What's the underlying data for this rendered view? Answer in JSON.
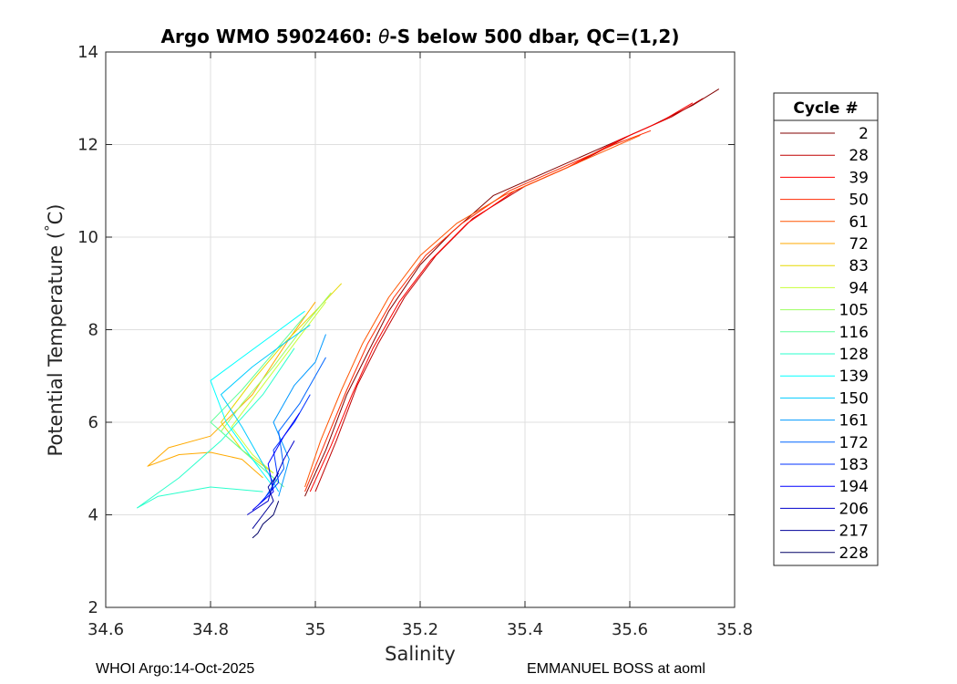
{
  "chart_data": {
    "type": "line",
    "title_parts": [
      "Argo WMO 5902460: ",
      "θ",
      "-S below 500 dbar,  QC=(1,2)"
    ],
    "xlabel": "Salinity",
    "ylabel_parts": [
      "Potential Temperature (",
      "°",
      "C)"
    ],
    "xlim": [
      34.6,
      35.8
    ],
    "ylim": [
      2,
      14
    ],
    "xticks": [
      "34.6",
      "34.8",
      "35",
      "35.2",
      "35.4",
      "35.6",
      "35.8"
    ],
    "yticks": [
      "2",
      "4",
      "6",
      "8",
      "10",
      "12",
      "14"
    ],
    "grid": true,
    "legend_title": "Cycle #",
    "legend_position": "outside-right",
    "legend_entries": [
      "2",
      "28",
      "39",
      "50",
      "61",
      "72",
      "83",
      "94",
      "105",
      "116",
      "128",
      "139",
      "150",
      "161",
      "172",
      "183",
      "194",
      "206",
      "217",
      "228"
    ],
    "series": [
      {
        "name": "2",
        "color": "#800000",
        "x": [
          34.98,
          35.02,
          35.06,
          35.1,
          35.14,
          35.2,
          35.26,
          35.34,
          35.44,
          35.54,
          35.64,
          35.72,
          35.77
        ],
        "y": [
          4.4,
          5.4,
          6.6,
          7.5,
          8.4,
          9.4,
          10.1,
          10.9,
          11.4,
          11.9,
          12.4,
          12.85,
          13.2
        ]
      },
      {
        "name": "28",
        "color": "#bf0000",
        "x": [
          35.0,
          35.04,
          35.08,
          35.12,
          35.17,
          35.23,
          35.3,
          35.4,
          35.5,
          35.6,
          35.68,
          35.74
        ],
        "y": [
          4.5,
          5.6,
          6.8,
          7.7,
          8.7,
          9.6,
          10.4,
          11.1,
          11.6,
          12.2,
          12.6,
          13.0
        ]
      },
      {
        "name": "39",
        "color": "#ff0000",
        "x": [
          34.99,
          35.03,
          35.07,
          35.11,
          35.16,
          35.22,
          35.29,
          35.38,
          35.48,
          35.58,
          35.66,
          35.72
        ],
        "y": [
          4.5,
          5.5,
          6.6,
          7.6,
          8.6,
          9.5,
          10.3,
          11.0,
          11.5,
          12.1,
          12.5,
          12.9
        ]
      },
      {
        "name": "50",
        "color": "#ff2a00",
        "x": [
          34.98,
          35.02,
          35.06,
          35.1,
          35.15,
          35.21,
          35.28,
          35.37,
          35.47,
          35.57,
          35.64
        ],
        "y": [
          4.5,
          5.6,
          6.7,
          7.7,
          8.7,
          9.6,
          10.3,
          11.0,
          11.5,
          12.0,
          12.3
        ]
      },
      {
        "name": "61",
        "color": "#ff5500",
        "x": [
          34.98,
          35.01,
          35.05,
          35.09,
          35.14,
          35.2,
          35.27,
          35.36,
          35.46,
          35.56,
          35.62
        ],
        "y": [
          4.6,
          5.6,
          6.7,
          7.7,
          8.7,
          9.6,
          10.3,
          10.9,
          11.4,
          11.9,
          12.2
        ]
      },
      {
        "name": "72",
        "color": "#ffaa00",
        "x": [
          34.9,
          34.86,
          34.8,
          34.74,
          34.68,
          34.72,
          34.8,
          34.88,
          34.95,
          35.0
        ],
        "y": [
          4.8,
          5.2,
          5.35,
          5.3,
          5.05,
          5.45,
          5.7,
          6.6,
          7.8,
          8.6
        ]
      },
      {
        "name": "83",
        "color": "#e6d800",
        "x": [
          34.92,
          34.86,
          34.82,
          34.88,
          34.94,
          35.0,
          35.05
        ],
        "y": [
          4.9,
          5.4,
          6.0,
          6.9,
          7.7,
          8.4,
          9.0
        ]
      },
      {
        "name": "94",
        "color": "#c8ff38",
        "x": [
          34.92,
          34.88,
          34.84,
          34.9,
          34.96,
          35.02
        ],
        "y": [
          4.9,
          5.3,
          5.9,
          6.8,
          7.7,
          8.6
        ]
      },
      {
        "name": "105",
        "color": "#9bff60",
        "x": [
          34.93,
          34.88,
          34.82,
          34.86,
          34.92,
          34.98,
          35.03
        ],
        "y": [
          4.7,
          5.2,
          5.8,
          6.4,
          7.2,
          8.1,
          8.8
        ]
      },
      {
        "name": "116",
        "color": "#60ff9b",
        "x": [
          34.94,
          34.9,
          34.84,
          34.8,
          34.86,
          34.92,
          34.98
        ],
        "y": [
          4.6,
          5.0,
          5.6,
          6.0,
          6.7,
          7.5,
          8.3
        ]
      },
      {
        "name": "128",
        "color": "#2affcc",
        "x": [
          34.9,
          34.8,
          34.7,
          34.66,
          34.74,
          34.82,
          34.9,
          34.96
        ],
        "y": [
          4.5,
          4.6,
          4.4,
          4.15,
          4.8,
          5.6,
          6.6,
          7.6
        ]
      },
      {
        "name": "139",
        "color": "#00ffff",
        "x": [
          34.92,
          34.88,
          34.83,
          34.8,
          34.86,
          34.92,
          34.98
        ],
        "y": [
          4.6,
          5.2,
          6.0,
          6.9,
          7.4,
          7.9,
          8.4
        ]
      },
      {
        "name": "150",
        "color": "#00ccff",
        "x": [
          34.93,
          34.9,
          34.86,
          34.82,
          34.88,
          34.94,
          34.99
        ],
        "y": [
          4.5,
          5.1,
          5.9,
          6.6,
          7.2,
          7.7,
          8.1
        ]
      },
      {
        "name": "161",
        "color": "#0099ff",
        "x": [
          34.93,
          34.95,
          34.92,
          34.96,
          35.0,
          35.02
        ],
        "y": [
          4.4,
          5.2,
          6.0,
          6.8,
          7.3,
          7.9
        ]
      },
      {
        "name": "172",
        "color": "#0066ff",
        "x": [
          34.9,
          34.94,
          34.93,
          34.97,
          35.0,
          35.02
        ],
        "y": [
          4.3,
          5.0,
          5.8,
          6.4,
          7.0,
          7.4
        ]
      },
      {
        "name": "183",
        "color": "#0033ff",
        "x": [
          34.89,
          34.93,
          34.92,
          34.96,
          34.99
        ],
        "y": [
          4.2,
          4.7,
          5.4,
          6.0,
          6.6
        ]
      },
      {
        "name": "194",
        "color": "#0000ff",
        "x": [
          34.88,
          34.92,
          34.91,
          34.94,
          34.97
        ],
        "y": [
          4.1,
          4.5,
          5.1,
          5.7,
          6.2
        ]
      },
      {
        "name": "206",
        "color": "#0000cc",
        "x": [
          34.87,
          34.91,
          34.92,
          34.94,
          34.96
        ],
        "y": [
          4.0,
          4.3,
          4.7,
          5.2,
          5.6
        ]
      },
      {
        "name": "217",
        "color": "#000099",
        "x": [
          34.88,
          34.9,
          34.92,
          34.91,
          34.93
        ],
        "y": [
          3.7,
          4.0,
          4.3,
          4.6,
          4.9
        ]
      },
      {
        "name": "228",
        "color": "#000066",
        "x": [
          34.88,
          34.89,
          34.9,
          34.92,
          34.93
        ],
        "y": [
          3.5,
          3.6,
          3.8,
          4.0,
          4.3
        ]
      }
    ]
  },
  "footer": {
    "left": "WHOI Argo:14-Oct-2025",
    "right": "EMMANUEL BOSS at aoml"
  }
}
